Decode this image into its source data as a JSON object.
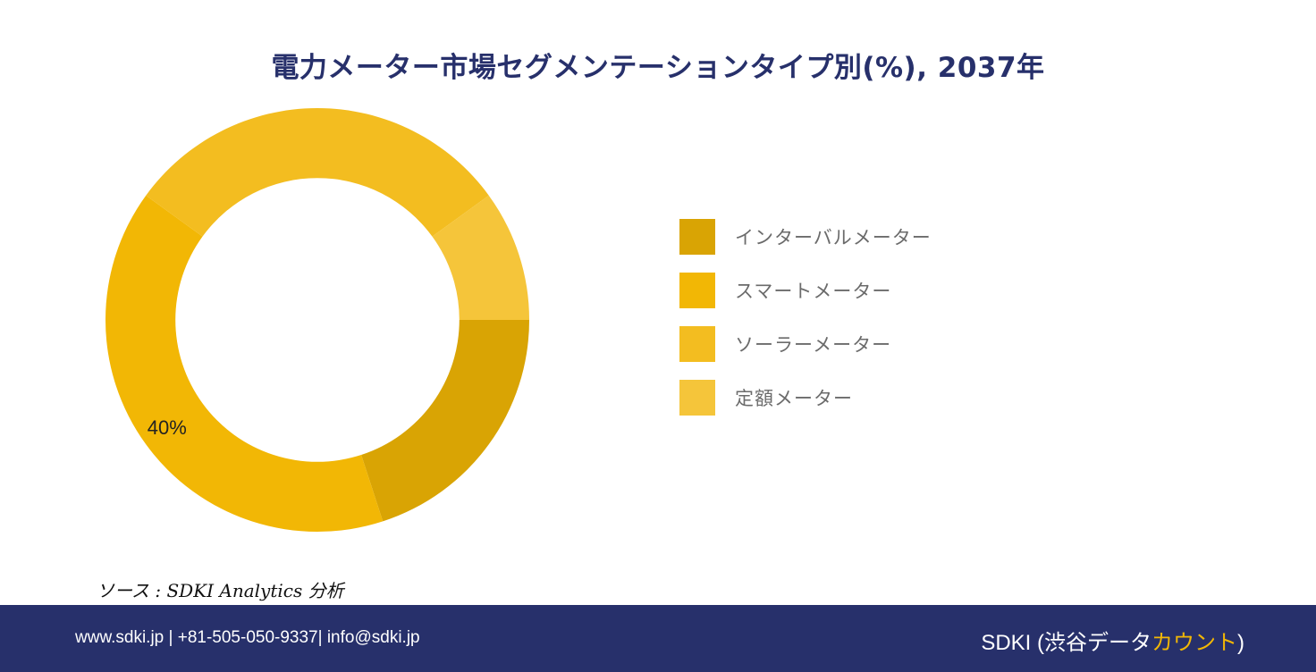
{
  "chart_data": {
    "type": "pie",
    "title": "電力メーター市場セグメンテーションタイプ別(%), 2037年",
    "categories": [
      "インターバルメーター",
      "スマートメーター",
      "ソーラーメーター",
      "定額メーター"
    ],
    "values": [
      20,
      40,
      30,
      10
    ],
    "data_labels": [
      "",
      "40%",
      "",
      ""
    ],
    "colors": [
      "#d9a404",
      "#f2b705",
      "#f3bd20",
      "#f5c53a"
    ],
    "hole_ratio": 0.67,
    "legend_position": "right"
  },
  "source": {
    "text": "ソース : SDKI Analytics 分析"
  },
  "footer": {
    "contact": "www.sdki.jp | +81-505-050-9337| info@sdki.jp",
    "brand_prefix": "SDKI (渋谷データ",
    "brand_accent": "カウント",
    "brand_suffix": ")"
  }
}
